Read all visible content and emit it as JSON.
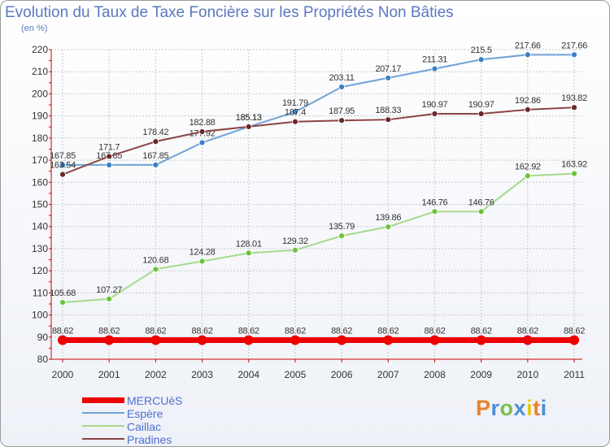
{
  "title": "Evolution du Taux de Taxe Foncière sur les Propriétés Non Bâties",
  "unit_label": "(en %)",
  "logo": "Proxiti",
  "colors": {
    "axis": "#d00000",
    "grid": "#c8c8c8",
    "tick_text": "#333333",
    "label_text": "#333333"
  },
  "chart_data": {
    "type": "line",
    "title": "Evolution du Taux de Taxe Foncière sur les Propriétés Non Bâties",
    "ylabel": "(en %)",
    "xlabel": "",
    "categories": [
      "2000",
      "2001",
      "2002",
      "2003",
      "2004",
      "2005",
      "2006",
      "2007",
      "2008",
      "2009",
      "2010",
      "2011"
    ],
    "ylim": [
      80,
      220
    ],
    "yticks": [
      80,
      90,
      100,
      110,
      120,
      130,
      140,
      150,
      160,
      170,
      180,
      190,
      200,
      210,
      220
    ],
    "grid": true,
    "legend_position": "bottom-left",
    "series": [
      {
        "name": "MERCUèS",
        "color": "#ee0000",
        "thick": true,
        "values": [
          88.62,
          88.62,
          88.62,
          88.62,
          88.62,
          88.62,
          88.62,
          88.62,
          88.62,
          88.62,
          88.62,
          88.62
        ]
      },
      {
        "name": "Espère",
        "color": "#6fa2d7",
        "marker": "#3b7fc4",
        "values": [
          167.85,
          167.85,
          167.85,
          177.92,
          185.13,
          191.79,
          203.11,
          207.17,
          211.31,
          215.5,
          217.66,
          217.66
        ]
      },
      {
        "name": "Caillac",
        "color": "#a6d98a",
        "marker": "#6cc23a",
        "values": [
          105.68,
          107.27,
          120.68,
          124.28,
          128.01,
          129.32,
          135.79,
          139.86,
          146.76,
          146.76,
          162.92,
          163.92
        ]
      },
      {
        "name": "Pradines",
        "color": "#8b4545",
        "marker": "#6b2a2a",
        "values": [
          163.54,
          171.7,
          178.42,
          182.88,
          185.13,
          187.4,
          187.95,
          188.33,
          190.97,
          190.97,
          192.86,
          193.82
        ]
      }
    ]
  }
}
